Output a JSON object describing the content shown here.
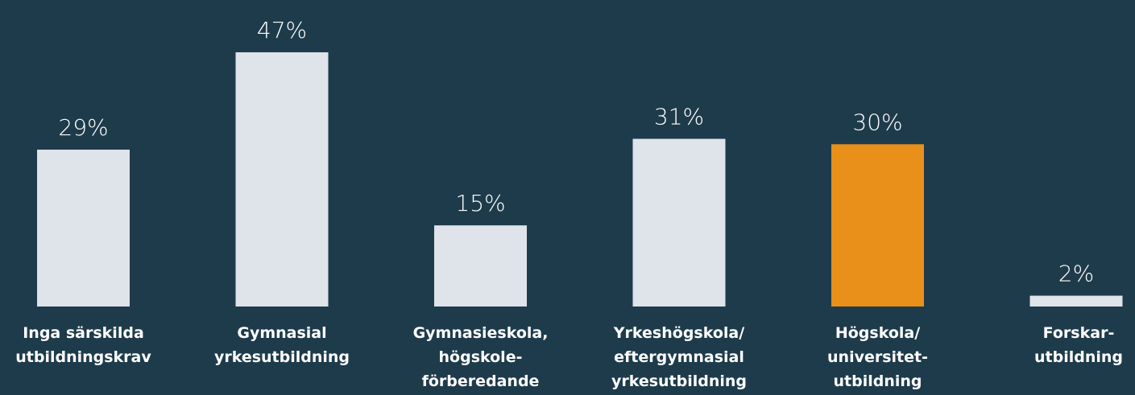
{
  "chart_data": {
    "type": "bar",
    "categories": [
      [
        "Inga särskilda",
        "utbildningskrav"
      ],
      [
        "Gymnasial",
        "yrkesutbildning"
      ],
      [
        "Gymnasieskola,",
        "högskole-",
        "förberedande"
      ],
      [
        "Yrkeshögskola/",
        "eftergymnasial",
        "yrkesutbildning"
      ],
      [
        "Högskola/",
        "universitet-",
        "utbildning"
      ],
      [
        "Forskar-",
        "utbildning"
      ]
    ],
    "values": [
      29,
      47,
      15,
      31,
      30,
      2
    ],
    "value_labels": [
      "29%",
      "47%",
      "15%",
      "31%",
      "30%",
      "2%"
    ],
    "colors": [
      "#dfe3ea",
      "#dfe3ea",
      "#dfe3ea",
      "#dfe3ea",
      "#e8901a",
      "#dfe3ea"
    ],
    "ylim": [
      0,
      47
    ],
    "grid": false
  }
}
